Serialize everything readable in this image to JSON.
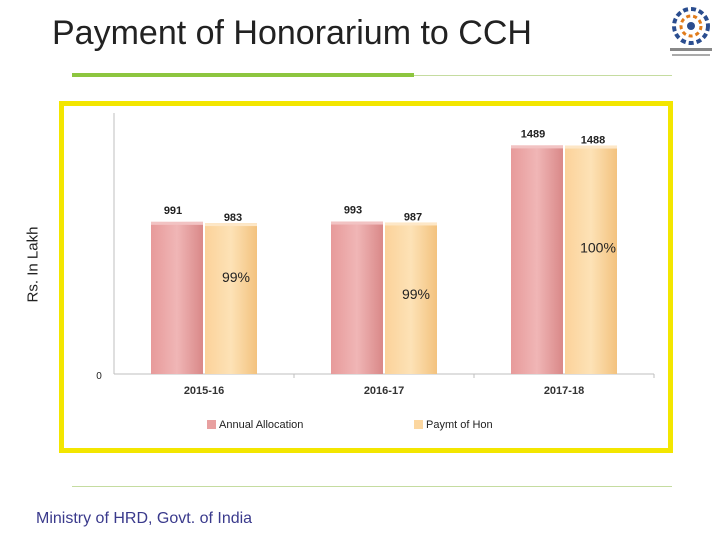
{
  "slide": {
    "title": "Payment of Honorarium to CCH",
    "footer": "Ministry of HRD, Govt. of India"
  },
  "colors": {
    "accent_green": "#8dc63f",
    "frame_yellow": "#f3e600",
    "allocation_bar": "#e8a0a0",
    "payment_bar": "#fcd7a0",
    "footer_text": "#3a3a8c"
  },
  "logo": {
    "icon": "ministry-emblem-icon"
  },
  "chart_data": {
    "type": "bar",
    "categories": [
      "2015-16",
      "2016-17",
      "2017-18"
    ],
    "series": [
      {
        "name": "Annual Allocation",
        "values": [
          991,
          993,
          1489
        ],
        "labels": [
          "991",
          "993",
          "1489"
        ],
        "color": "#e8a0a0"
      },
      {
        "name": "Paymt of Hon",
        "values": [
          983,
          987,
          1488
        ],
        "labels": [
          "983",
          "987",
          "1488"
        ],
        "color": "#fcd7a0"
      }
    ],
    "percent_labels": [
      "99%",
      "99%",
      "100%"
    ],
    "ylabel": "Rs. In Lakh",
    "y_tick_labels": [
      "0"
    ],
    "ylim": [
      0,
      1700
    ],
    "grid": false,
    "legend_position": "bottom"
  }
}
